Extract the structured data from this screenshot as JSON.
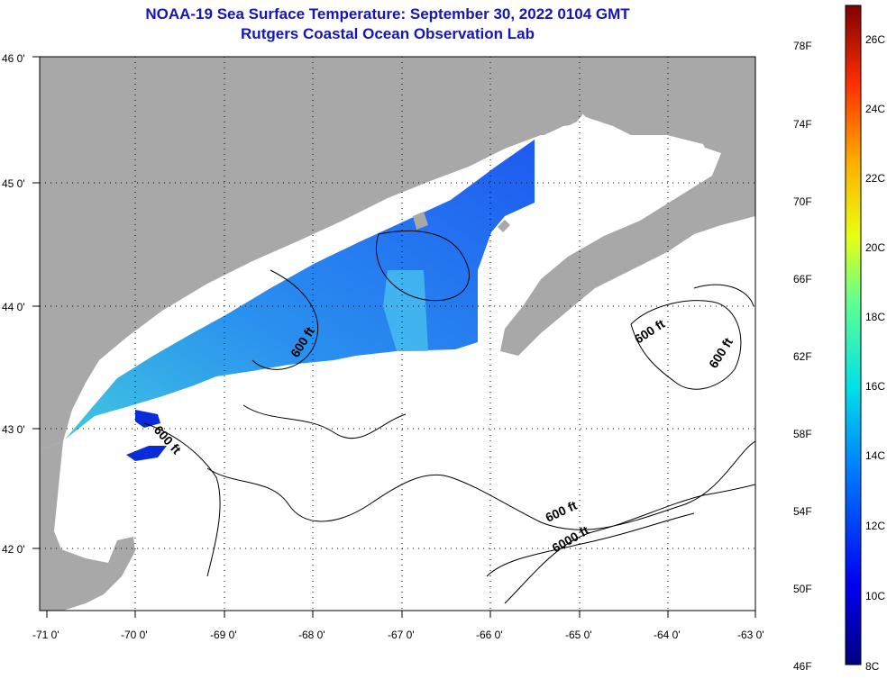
{
  "title": {
    "line1": "NOAA-19 Sea Surface Temperature:  September 30, 2022 0104 GMT",
    "line2": "Rutgers Coastal Ocean Observation Lab"
  },
  "colors": {
    "title": "#1515b8",
    "land": "#a8a8a8",
    "ocean": "#ffffff",
    "sst_cold": "#1e50f0",
    "sst_warm": "#40c8e0"
  },
  "axes": {
    "lat_labels": [
      "46 0'",
      "45 0'",
      "44 0'",
      "43 0'",
      "42 0'"
    ],
    "lon_labels": [
      "-71 0'",
      "-70 0'",
      "-69 0'",
      "-68 0'",
      "-67 0'",
      "-66 0'",
      "-65 0'",
      "-64 0'",
      "-63 0'"
    ]
  },
  "contours": [
    {
      "label": "600 ft"
    },
    {
      "label": "600 ft"
    },
    {
      "label": "600 ft"
    },
    {
      "label": "600 ft"
    },
    {
      "label": "600 ft"
    },
    {
      "label": "6000 ft"
    }
  ],
  "colorbar": {
    "f_labels": [
      "78F",
      "74F",
      "70F",
      "66F",
      "62F",
      "58F",
      "54F",
      "50F",
      "46F"
    ],
    "c_labels": [
      "26C",
      "24C",
      "22C",
      "20C",
      "18C",
      "16C",
      "14C",
      "12C",
      "10C",
      "8C"
    ]
  }
}
